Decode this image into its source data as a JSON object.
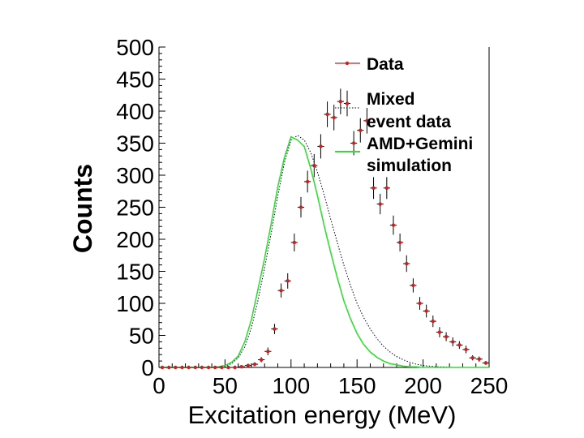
{
  "chart_data": {
    "type": "scatter",
    "title": "",
    "xlabel": "Excitation energy (MeV)",
    "ylabel": "Counts",
    "xlim": [
      0,
      250
    ],
    "ylim": [
      0,
      500
    ],
    "xticks": [
      0,
      50,
      100,
      150,
      200,
      250
    ],
    "yticks": [
      0,
      50,
      100,
      150,
      200,
      250,
      300,
      350,
      400,
      450,
      500
    ],
    "xtick_labels": [
      "0",
      "50",
      "100",
      "150",
      "200",
      "250"
    ],
    "ytick_labels": [
      "0",
      "50",
      "100",
      "150",
      "200",
      "250",
      "300",
      "350",
      "400",
      "450",
      "500"
    ],
    "legend_position": "top-right",
    "legend": [
      "Data",
      "Mixed event data",
      "AMD+Gemini simulation"
    ],
    "legend_lines": {
      "data": "Data",
      "mixed": [
        "Mixed",
        "event data"
      ],
      "sim": [
        "AMD+Gemini",
        "simulation"
      ]
    },
    "colors": {
      "data": "#cc1f1f",
      "mixed": "#000033",
      "sim": "#33dd33"
    },
    "series": [
      {
        "name": "Data",
        "style": "points-with-errors",
        "x": [
          2.5,
          7.5,
          12.5,
          17.5,
          22.5,
          27.5,
          32.5,
          37.5,
          42.5,
          47.5,
          52.5,
          57.5,
          62.5,
          67.5,
          72.5,
          77.5,
          82.5,
          87.5,
          92.5,
          97.5,
          102.5,
          107.5,
          112.5,
          117.5,
          122.5,
          127.5,
          132.5,
          137.5,
          142.5,
          147.5,
          152.5,
          157.5,
          162.5,
          167.5,
          172.5,
          177.5,
          182.5,
          187.5,
          192.5,
          197.5,
          202.5,
          207.5,
          212.5,
          217.5,
          222.5,
          227.5,
          232.5,
          237.5,
          242.5,
          247.5
        ],
        "y": [
          0,
          0,
          0,
          0,
          0,
          0,
          0,
          0,
          0,
          0,
          0,
          0,
          1,
          3,
          5,
          12,
          25,
          60,
          120,
          135,
          195,
          250,
          290,
          315,
          345,
          395,
          390,
          415,
          412,
          350,
          370,
          385,
          280,
          255,
          280,
          222,
          195,
          162,
          128,
          100,
          88,
          72,
          55,
          48,
          40,
          35,
          28,
          15,
          13,
          7
        ],
        "err": [
          0,
          0,
          0,
          0,
          0,
          0,
          0,
          0,
          0,
          0,
          0,
          0,
          1,
          2,
          3,
          4,
          6,
          8,
          11,
          12,
          14,
          16,
          17,
          18,
          19,
          20,
          20,
          20,
          20,
          19,
          19,
          20,
          17,
          16,
          17,
          15,
          14,
          13,
          11,
          10,
          10,
          9,
          8,
          7,
          7,
          6,
          6,
          4,
          4,
          3
        ]
      },
      {
        "name": "Mixed event data",
        "style": "dotted-line",
        "x": [
          0,
          40,
          45,
          50,
          55,
          60,
          65,
          70,
          75,
          80,
          85,
          90,
          95,
          100,
          105,
          110,
          115,
          120,
          125,
          130,
          135,
          140,
          145,
          150,
          155,
          160,
          165,
          170,
          175,
          180,
          185,
          190,
          195,
          200,
          205,
          210,
          215,
          220,
          225,
          230,
          250
        ],
        "y": [
          0,
          0,
          1,
          2,
          6,
          15,
          32,
          62,
          105,
          155,
          210,
          268,
          320,
          355,
          362,
          355,
          335,
          305,
          270,
          232,
          195,
          160,
          128,
          100,
          78,
          60,
          45,
          33,
          24,
          17,
          12,
          8,
          5,
          3,
          2,
          1,
          1,
          0,
          0,
          0,
          0
        ]
      },
      {
        "name": "AMD+Gemini simulation",
        "style": "solid-line",
        "x": [
          0,
          40,
          45,
          50,
          55,
          60,
          65,
          70,
          75,
          80,
          85,
          90,
          95,
          100,
          105,
          110,
          115,
          120,
          125,
          130,
          135,
          140,
          145,
          150,
          155,
          160,
          165,
          170,
          175,
          180,
          185,
          190,
          195,
          200,
          205,
          210,
          250
        ],
        "y": [
          0,
          0,
          1,
          3,
          8,
          18,
          40,
          75,
          122,
          170,
          225,
          282,
          328,
          360,
          355,
          345,
          310,
          268,
          222,
          180,
          140,
          104,
          76,
          53,
          36,
          24,
          16,
          10,
          6,
          4,
          2,
          1,
          1,
          0,
          0,
          0,
          0
        ]
      }
    ]
  }
}
